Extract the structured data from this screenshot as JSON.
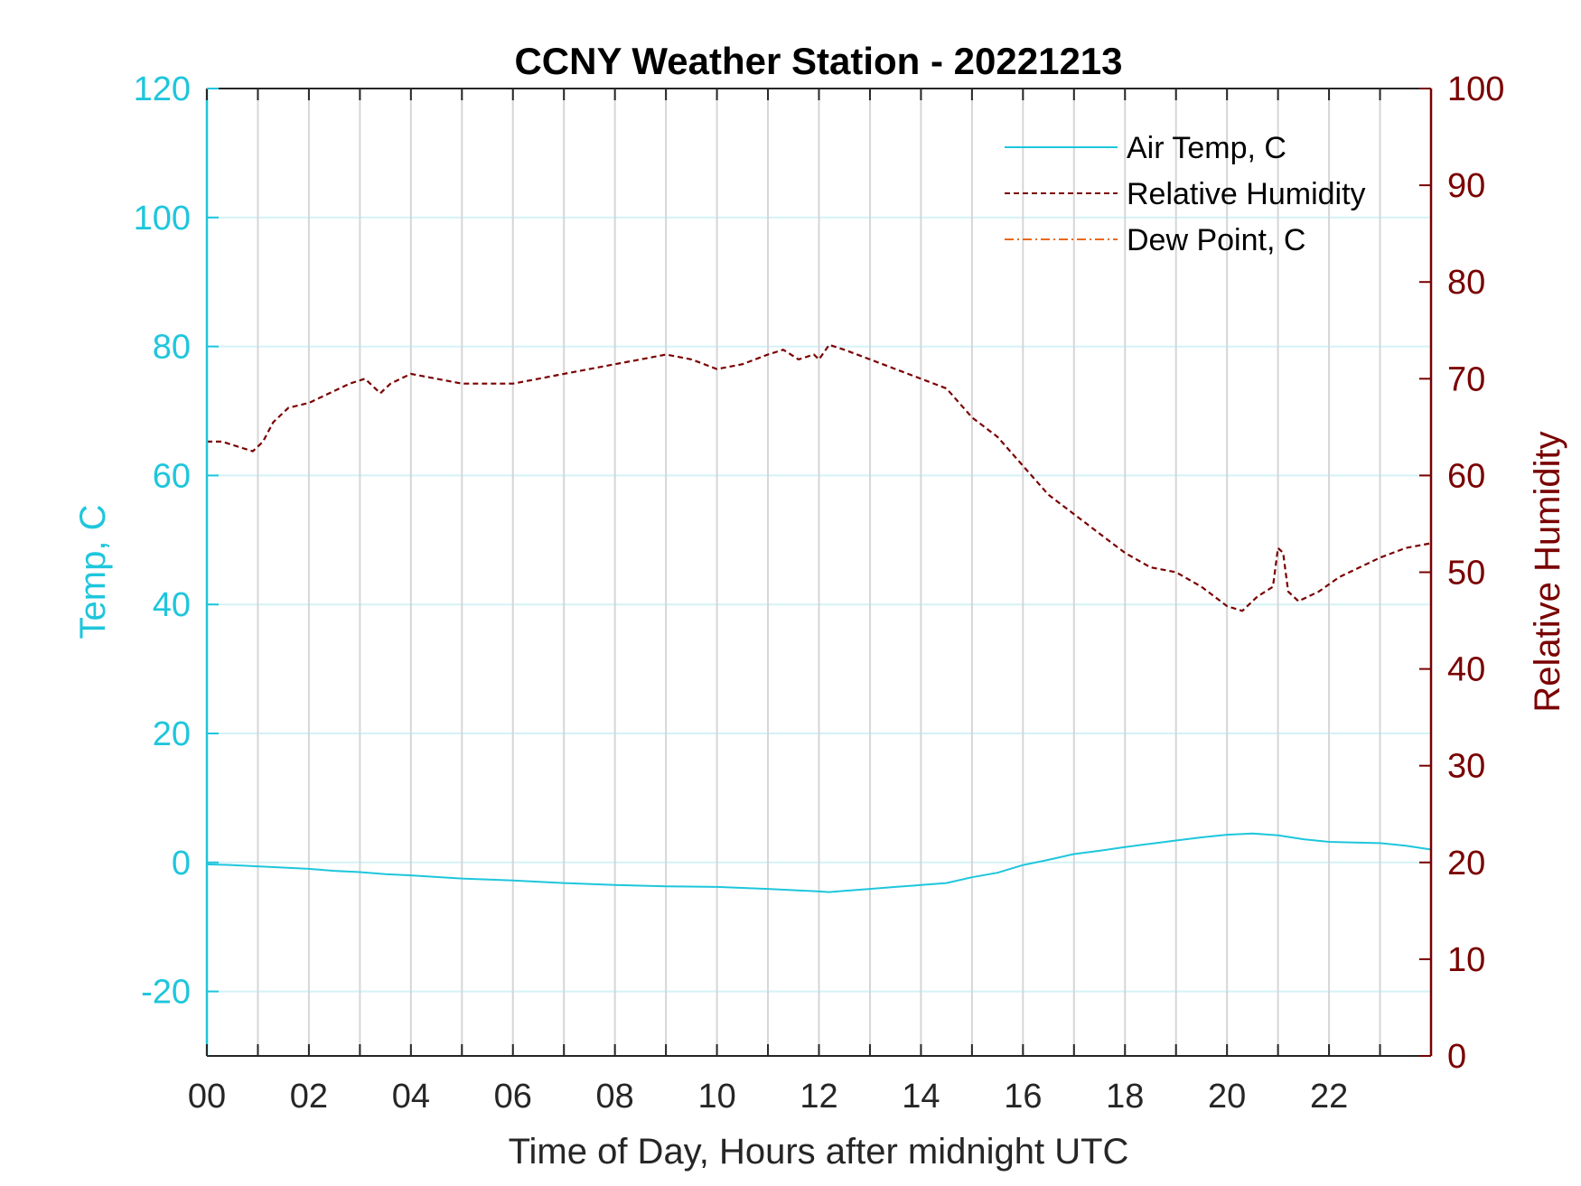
{
  "chart_data": {
    "type": "line",
    "title": "CCNY Weather Station - 20221213",
    "xlabel": "Time of Day, Hours after midnight UTC",
    "ylabel_left": "Temp, C",
    "ylabel_right": "Relative Humidity",
    "xlim": [
      0,
      24
    ],
    "ylim_left": [
      -30,
      120
    ],
    "ylim_right": [
      0,
      100
    ],
    "x_ticks": [
      0,
      2,
      4,
      6,
      8,
      10,
      12,
      14,
      16,
      18,
      20,
      22
    ],
    "x_tick_labels": [
      "00",
      "02",
      "04",
      "06",
      "08",
      "10",
      "12",
      "14",
      "16",
      "18",
      "20",
      "22"
    ],
    "x_minor_grid": [
      1,
      3,
      5,
      7,
      9,
      11,
      13,
      15,
      17,
      19,
      21,
      23
    ],
    "y_left_ticks": [
      -20,
      0,
      20,
      40,
      60,
      80,
      100,
      120
    ],
    "y_right_ticks": [
      0,
      10,
      20,
      30,
      40,
      50,
      60,
      70,
      80,
      90,
      100
    ],
    "grid": true,
    "legend_position": "top-right",
    "colors": {
      "left_axis": "#1ec6dc",
      "right_axis": "#7a0000",
      "air_temp": "#1ec6dc",
      "rh": "#7a0000",
      "dew_point": "#e8691a",
      "grid_vertical": "#d6d6d6",
      "grid_horizontal": "#d4f2f6"
    },
    "series": [
      {
        "name": "Air Temp, C",
        "axis": "left",
        "style": "solid",
        "x": [
          0,
          0.5,
          1,
          1.5,
          2,
          2.5,
          3,
          3.5,
          4,
          5,
          6,
          7,
          8,
          9,
          10,
          11,
          11.5,
          12,
          12.2,
          12.5,
          13,
          13.5,
          14,
          14.5,
          15,
          15.5,
          16,
          16.5,
          17,
          17.5,
          18,
          18.5,
          19,
          19.5,
          20,
          20.5,
          21,
          21.5,
          22,
          22.5,
          23,
          23.5,
          24
        ],
        "y": [
          -0.3,
          -0.4,
          -0.6,
          -0.8,
          -1.0,
          -1.3,
          -1.5,
          -1.8,
          -2.0,
          -2.5,
          -2.8,
          -3.2,
          -3.5,
          -3.7,
          -3.8,
          -4.1,
          -4.3,
          -4.5,
          -4.6,
          -4.4,
          -4.1,
          -3.8,
          -3.5,
          -3.2,
          -2.3,
          -1.6,
          -0.4,
          0.4,
          1.3,
          1.8,
          2.4,
          2.9,
          3.4,
          3.9,
          4.3,
          4.5,
          4.2,
          3.6,
          3.2,
          3.1,
          3.0,
          2.6,
          2.0
        ]
      },
      {
        "name": "Relative Humidity",
        "axis": "right",
        "style": "dashed",
        "x": [
          0,
          0.3,
          0.6,
          0.9,
          1.1,
          1.3,
          1.6,
          2.0,
          2.4,
          2.8,
          3.1,
          3.4,
          3.6,
          3.8,
          4.0,
          4.5,
          5.0,
          5.5,
          6.0,
          6.5,
          7.0,
          7.5,
          8.0,
          8.5,
          9.0,
          9.5,
          10.0,
          10.5,
          11.0,
          11.3,
          11.6,
          11.9,
          12.0,
          12.2,
          12.5,
          13.0,
          13.5,
          14.0,
          14.5,
          15.0,
          15.5,
          16.0,
          16.5,
          17.0,
          17.5,
          18.0,
          18.5,
          19.0,
          19.5,
          20.0,
          20.3,
          20.6,
          20.9,
          21.0,
          21.1,
          21.2,
          21.4,
          21.8,
          22.2,
          22.6,
          23.0,
          23.5,
          24.0
        ],
        "y": [
          63.5,
          63.5,
          63.0,
          62.5,
          63.5,
          65.5,
          67.0,
          67.5,
          68.5,
          69.5,
          70.0,
          68.5,
          69.5,
          70.0,
          70.5,
          70.0,
          69.5,
          69.5,
          69.5,
          70.0,
          70.5,
          71.0,
          71.5,
          72.0,
          72.5,
          72.0,
          71.0,
          71.5,
          72.5,
          73.0,
          72.0,
          72.5,
          72.0,
          73.5,
          73.0,
          72.0,
          71.0,
          70.0,
          69.0,
          66.0,
          64.0,
          61.0,
          58.0,
          56.0,
          54.0,
          52.0,
          50.5,
          50.0,
          48.5,
          46.5,
          46.0,
          47.5,
          48.5,
          52.5,
          52.0,
          48.0,
          47.0,
          48.0,
          49.5,
          50.5,
          51.5,
          52.5,
          53.0
        ]
      },
      {
        "name": "Dew Point, C",
        "axis": "left",
        "style": "dash-dot",
        "x": [],
        "y": []
      }
    ]
  }
}
